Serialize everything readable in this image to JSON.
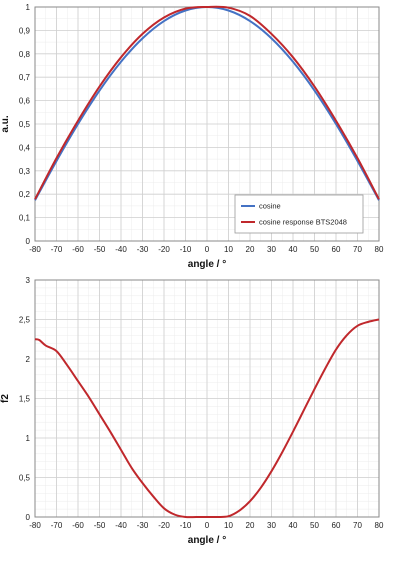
{
  "colors": {
    "cosine": "#4472c4",
    "response": "#c0282c",
    "grid": "#cfcfcf",
    "axis": "#8a8a8a"
  },
  "chart_data": [
    {
      "type": "line",
      "xlabel": "angle / °",
      "ylabel": "a.u.",
      "xlim": [
        -80,
        80
      ],
      "ylim": [
        0,
        1
      ],
      "x_ticks": [
        -80,
        -70,
        -60,
        -50,
        -40,
        -30,
        -20,
        -10,
        0,
        10,
        20,
        30,
        40,
        50,
        60,
        70,
        80
      ],
      "x_tick_labels": [
        "-80",
        "-70",
        "-60",
        "-50",
        "-40",
        "-30",
        "-20",
        "-10",
        "0",
        "10",
        "20",
        "30",
        "40",
        "50",
        "60",
        "70",
        "80"
      ],
      "y_ticks": [
        0,
        0.1,
        0.2,
        0.3,
        0.4,
        0.5,
        0.6,
        0.7,
        0.8,
        0.9,
        1
      ],
      "y_tick_labels": [
        "0",
        "0,1",
        "0,2",
        "0,3",
        "0,4",
        "0,5",
        "0,6",
        "0,7",
        "0,8",
        "0,9",
        "1"
      ],
      "grid": true,
      "legend": "bottom-right",
      "series": [
        {
          "name": "cosine",
          "color": "#4472c4",
          "x": [
            -80,
            -70,
            -60,
            -50,
            -40,
            -30,
            -20,
            -10,
            0,
            10,
            20,
            30,
            40,
            50,
            60,
            70,
            80
          ],
          "y": [
            0.174,
            0.342,
            0.5,
            0.643,
            0.766,
            0.866,
            0.94,
            0.985,
            1,
            0.985,
            0.94,
            0.866,
            0.766,
            0.643,
            0.5,
            0.342,
            0.174
          ]
        },
        {
          "name": "cosine response BTS2048",
          "color": "#c0282c",
          "x": [
            -80,
            -70,
            -60,
            -50,
            -40,
            -30,
            -20,
            -10,
            0,
            10,
            20,
            30,
            40,
            50,
            60,
            70,
            80
          ],
          "y": [
            0.178,
            0.354,
            0.514,
            0.66,
            0.785,
            0.885,
            0.955,
            0.993,
            1,
            0.997,
            0.962,
            0.885,
            0.785,
            0.66,
            0.514,
            0.354,
            0.178
          ]
        }
      ]
    },
    {
      "type": "line",
      "xlabel": "angle / °",
      "ylabel": "f2",
      "xlim": [
        -80,
        80
      ],
      "ylim": [
        0,
        3
      ],
      "x_ticks": [
        -80,
        -70,
        -60,
        -50,
        -40,
        -30,
        -20,
        -10,
        0,
        10,
        20,
        30,
        40,
        50,
        60,
        70,
        80
      ],
      "x_tick_labels": [
        "-80",
        "-70",
        "-60",
        "-50",
        "-40",
        "-30",
        "-20",
        "-10",
        "0",
        "10",
        "20",
        "30",
        "40",
        "50",
        "60",
        "70",
        "80"
      ],
      "y_ticks": [
        0,
        0.5,
        1,
        1.5,
        2,
        2.5,
        3
      ],
      "y_tick_labels": [
        "0",
        "0,5",
        "1",
        "1,5",
        "2",
        "2,5",
        "3"
      ],
      "grid": true,
      "series": [
        {
          "color": "#c0282c",
          "x": [
            -80,
            -78,
            -75,
            -70,
            -65,
            -60,
            -55,
            -50,
            -45,
            -40,
            -35,
            -30,
            -25,
            -20,
            -15,
            -10,
            -5,
            0,
            5,
            10,
            15,
            20,
            25,
            30,
            35,
            40,
            45,
            50,
            55,
            60,
            65,
            70,
            75,
            80
          ],
          "y": [
            2.25,
            2.24,
            2.17,
            2.1,
            1.92,
            1.72,
            1.52,
            1.3,
            1.08,
            0.85,
            0.62,
            0.43,
            0.26,
            0.11,
            0.03,
            0.0,
            0.0,
            0.0,
            0.0,
            0.01,
            0.08,
            0.2,
            0.37,
            0.58,
            0.82,
            1.08,
            1.35,
            1.62,
            1.88,
            2.12,
            2.3,
            2.42,
            2.47,
            2.5
          ]
        }
      ]
    }
  ]
}
